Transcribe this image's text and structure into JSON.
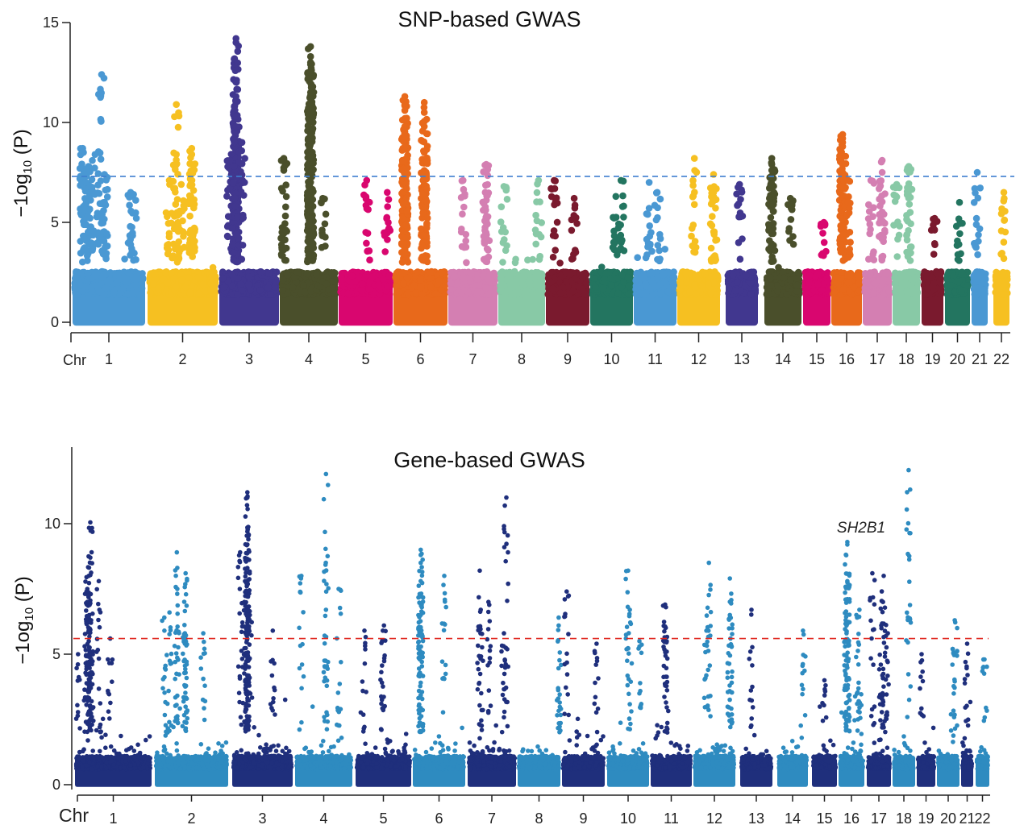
{
  "chart_data": [
    {
      "type": "scatter",
      "subtype": "manhattan",
      "title": "SNP-based GWAS",
      "ylabel": "−1og10 (P)",
      "ylabel_main": "−1og",
      "ylabel_sub": "10",
      "ylabel_tail": " (P)",
      "xlabel": "Chr",
      "ylim": [
        0,
        15
      ],
      "yticks": [
        "0",
        "5",
        "10",
        "15"
      ],
      "threshold": 7.3,
      "threshold_color": "#3f7fd0",
      "grid": false,
      "chromosomes": [
        {
          "label": "1",
          "color": "#4a98d3",
          "peaks": [
            [
              0.14,
              8.7
            ],
            [
              0.15,
              8.5
            ],
            [
              0.22,
              7.8
            ],
            [
              0.2,
              7.6
            ],
            [
              0.18,
              7.0
            ],
            [
              0.25,
              6.5
            ],
            [
              0.4,
              12.4
            ],
            [
              0.31,
              8.4
            ],
            [
              0.44,
              7.4
            ],
            [
              0.44,
              6.0
            ],
            [
              0.84,
              6.4
            ],
            [
              0.8,
              6.5
            ]
          ]
        },
        {
          "label": "2",
          "color": "#f6c021",
          "peaks": [
            [
              0.41,
              10.9
            ],
            [
              0.41,
              8.4
            ],
            [
              0.63,
              8.7
            ],
            [
              0.63,
              8.4
            ],
            [
              0.63,
              7.6
            ],
            [
              0.31,
              7.1
            ],
            [
              0.48,
              6.9
            ]
          ]
        },
        {
          "label": "3",
          "color": "#41378f",
          "peaks": [
            [
              0.28,
              14.2
            ],
            [
              0.28,
              14.0
            ],
            [
              0.28,
              11.3
            ],
            [
              0.28,
              11.0
            ],
            [
              0.25,
              10.8
            ],
            [
              0.28,
              10.3
            ],
            [
              0.28,
              9.8
            ],
            [
              0.25,
              9.0
            ],
            [
              0.38,
              9.0
            ],
            [
              0.18,
              8.1
            ],
            [
              0.25,
              7.8
            ]
          ]
        },
        {
          "label": "4",
          "color": "#4a4f2b",
          "peaks": [
            [
              0.53,
              13.8
            ],
            [
              0.53,
              13.3
            ],
            [
              0.53,
              13.0
            ],
            [
              0.53,
              12.9
            ],
            [
              0.53,
              11.5
            ],
            [
              0.53,
              11.0
            ],
            [
              0.53,
              10.5
            ],
            [
              0.53,
              9.4
            ],
            [
              0.07,
              8.2
            ],
            [
              0.07,
              7.6
            ],
            [
              0.53,
              7.0
            ],
            [
              0.74,
              6.2
            ]
          ]
        },
        {
          "label": "5",
          "color": "#d9066f",
          "peaks": [
            [
              0.52,
              7.1
            ],
            [
              0.9,
              6.5
            ]
          ]
        },
        {
          "label": "6",
          "color": "#e8691b",
          "peaks": [
            [
              0.21,
              11.3
            ],
            [
              0.21,
              11.0
            ],
            [
              0.21,
              10.6
            ],
            [
              0.21,
              10.2
            ],
            [
              0.21,
              9.8
            ],
            [
              0.21,
              9.3
            ],
            [
              0.21,
              8.8
            ],
            [
              0.57,
              11.0
            ],
            [
              0.57,
              10.5
            ],
            [
              0.57,
              9.8
            ],
            [
              0.57,
              8.5
            ],
            [
              0.57,
              7.6
            ]
          ]
        },
        {
          "label": "7",
          "color": "#d47fb2",
          "peaks": [
            [
              0.77,
              7.9
            ],
            [
              0.77,
              7.5
            ],
            [
              0.3,
              7.1
            ],
            [
              0.75,
              6.5
            ]
          ]
        },
        {
          "label": "8",
          "color": "#88c9a6",
          "peaks": [
            [
              0.86,
              7.1
            ],
            [
              0.12,
              6.8
            ]
          ]
        },
        {
          "label": "9",
          "color": "#7a1a2e",
          "peaks": [
            [
              0.19,
              7.1
            ],
            [
              0.65,
              6.2
            ]
          ]
        },
        {
          "label": "10",
          "color": "#237560",
          "peaks": [
            [
              0.72,
              7.1
            ],
            [
              0.6,
              6.3
            ]
          ]
        },
        {
          "label": "11",
          "color": "#4a98d3",
          "peaks": [
            [
              0.36,
              7.0
            ],
            [
              0.55,
              6.5
            ]
          ]
        },
        {
          "label": "12",
          "color": "#f6c021",
          "peaks": [
            [
              0.4,
              8.2
            ],
            [
              0.85,
              7.4
            ],
            [
              0.85,
              6.5
            ]
          ]
        },
        {
          "label": "13",
          "color": "#41378f",
          "peaks": [
            [
              0.43,
              6.9
            ]
          ]
        },
        {
          "label": "14",
          "color": "#4a4f2b",
          "peaks": [
            [
              0.2,
              8.2
            ],
            [
              0.2,
              7.9
            ],
            [
              0.2,
              7.6
            ],
            [
              0.2,
              6.9
            ],
            [
              0.7,
              6.2
            ]
          ]
        },
        {
          "label": "15",
          "color": "#d9066f",
          "peaks": [
            [
              0.76,
              5.0
            ]
          ]
        },
        {
          "label": "16",
          "color": "#e8691b",
          "peaks": [
            [
              0.37,
              9.4
            ],
            [
              0.37,
              9.2
            ],
            [
              0.37,
              9.0
            ],
            [
              0.37,
              8.8
            ],
            [
              0.37,
              7.9
            ],
            [
              0.55,
              7.1
            ]
          ]
        },
        {
          "label": "17",
          "color": "#d47fb2",
          "peaks": [
            [
              0.67,
              8.1
            ],
            [
              0.67,
              7.5
            ],
            [
              0.28,
              7.1
            ]
          ]
        },
        {
          "label": "18",
          "color": "#88c9a6",
          "peaks": [
            [
              0.59,
              7.8
            ],
            [
              0.59,
              7.5
            ],
            [
              0.15,
              6.9
            ]
          ]
        },
        {
          "label": "19",
          "color": "#7a1a2e",
          "peaks": [
            [
              0.6,
              5.2
            ]
          ]
        },
        {
          "label": "20",
          "color": "#237560",
          "peaks": [
            [
              0.58,
              6.0
            ]
          ]
        },
        {
          "label": "21",
          "color": "#4a98d3",
          "peaks": [
            [
              0.35,
              7.5
            ]
          ]
        },
        {
          "label": "22",
          "color": "#f6c021",
          "peaks": [
            [
              0.65,
              6.5
            ]
          ]
        }
      ]
    },
    {
      "type": "scatter",
      "subtype": "manhattan",
      "title": "Gene-based GWAS",
      "ylabel": "−1og10 (P)",
      "ylabel_main": "−1og",
      "ylabel_sub": "10",
      "ylabel_tail": " (P)",
      "xlabel": "Chr",
      "ylim": [
        0,
        13
      ],
      "yticks": [
        "0",
        "5",
        "10"
      ],
      "threshold": 5.6,
      "threshold_color": "#e0261f",
      "grid": false,
      "annotation": {
        "text": "SH2B1",
        "chromosome": "16",
        "value": 9.3
      },
      "colors": [
        "#1f2f7c",
        "#2e8bc0"
      ],
      "chromosomes": [
        {
          "label": "1",
          "peaks": [
            [
              0.2,
              10.05
            ],
            [
              0.2,
              8.7
            ],
            [
              0.18,
              8.0
            ],
            [
              0.15,
              7.95
            ],
            [
              0.31,
              7.8
            ],
            [
              0.15,
              7.4
            ],
            [
              0.16,
              7.0
            ],
            [
              0.2,
              6.95
            ],
            [
              0.21,
              6.3
            ],
            [
              0.04,
              5.0
            ],
            [
              0.46,
              5.6
            ],
            [
              0.18,
              5.5
            ]
          ]
        },
        {
          "label": "2",
          "peaks": [
            [
              0.3,
              8.9
            ],
            [
              0.42,
              8.1
            ],
            [
              0.13,
              6.4
            ],
            [
              0.2,
              6.6
            ],
            [
              0.31,
              6.55
            ],
            [
              0.41,
              6.65
            ],
            [
              0.41,
              5.8
            ],
            [
              0.66,
              5.8
            ],
            [
              0.41,
              5.4
            ]
          ]
        },
        {
          "label": "3",
          "peaks": [
            [
              0.13,
              8.9
            ],
            [
              0.25,
              11.2
            ],
            [
              0.25,
              11.0
            ],
            [
              0.25,
              9.85
            ],
            [
              0.25,
              9.7
            ],
            [
              0.25,
              9.2
            ],
            [
              0.25,
              8.3
            ],
            [
              0.2,
              7.0
            ],
            [
              0.29,
              6.5
            ],
            [
              0.25,
              6.2
            ],
            [
              0.67,
              5.9
            ]
          ]
        },
        {
          "label": "4",
          "peaks": [
            [
              0.11,
              8.0
            ],
            [
              0.54,
              11.9
            ],
            [
              0.54,
              6.7
            ],
            [
              0.76,
              7.5
            ]
          ]
        },
        {
          "label": "5",
          "peaks": [
            [
              0.51,
              6.1
            ],
            [
              0.16,
              5.9
            ],
            [
              0.49,
              5.9
            ]
          ]
        },
        {
          "label": "6",
          "peaks": [
            [
              0.15,
              9.0
            ],
            [
              0.15,
              8.8
            ],
            [
              0.15,
              8.5
            ],
            [
              0.15,
              7.8
            ],
            [
              0.15,
              7.2
            ],
            [
              0.15,
              6.5
            ],
            [
              0.6,
              8.0
            ]
          ]
        },
        {
          "label": "7",
          "peaks": [
            [
              0.25,
              8.2
            ],
            [
              0.43,
              7.0
            ],
            [
              0.27,
              6.7
            ],
            [
              0.8,
              11.0
            ],
            [
              0.75,
              5.8
            ]
          ]
        },
        {
          "label": "8",
          "peaks": [
            [
              0.96,
              6.4
            ],
            [
              0.96,
              6.1
            ]
          ]
        },
        {
          "label": "9",
          "peaks": [
            [
              0.11,
              7.4
            ],
            [
              0.81,
              5.4
            ]
          ]
        },
        {
          "label": "10",
          "peaks": [
            [
              0.5,
              8.2
            ],
            [
              0.54,
              6.7
            ],
            [
              0.77,
              5.5
            ]
          ]
        },
        {
          "label": "11",
          "peaks": [
            [
              0.35,
              6.9
            ],
            [
              0.37,
              6.8
            ],
            [
              0.37,
              5.5
            ]
          ]
        },
        {
          "label": "12",
          "peaks": [
            [
              0.37,
              8.5
            ],
            [
              0.31,
              5.9
            ],
            [
              0.87,
              7.9
            ],
            [
              0.87,
              6.5
            ],
            [
              0.87,
              6.4
            ]
          ]
        },
        {
          "label": "13",
          "peaks": [
            [
              0.35,
              6.7
            ]
          ]
        },
        {
          "label": "14",
          "peaks": [
            [
              0.84,
              5.9
            ]
          ]
        },
        {
          "label": "15",
          "peaks": [
            [
              0.5,
              4.0
            ]
          ]
        },
        {
          "label": "16",
          "peaks": [
            [
              0.34,
              9.3
            ],
            [
              0.34,
              9.2
            ],
            [
              0.34,
              7.8
            ],
            [
              0.34,
              7.6
            ],
            [
              0.81,
              6.7
            ],
            [
              0.69,
              6.5
            ],
            [
              0.31,
              6.1
            ],
            [
              0.31,
              5.8
            ]
          ]
        },
        {
          "label": "17",
          "peaks": [
            [
              0.23,
              8.1
            ],
            [
              0.7,
              8.0
            ],
            [
              0.67,
              7.0
            ],
            [
              0.87,
              5.8
            ],
            [
              0.6,
              6.1
            ]
          ]
        },
        {
          "label": "18",
          "peaks": [
            [
              0.71,
              12.05
            ]
          ]
        },
        {
          "label": "19",
          "peaks": [
            [
              0.26,
              5.0
            ]
          ]
        },
        {
          "label": "20",
          "peaks": [
            [
              0.79,
              6.3
            ],
            [
              0.7,
              5.2
            ]
          ]
        },
        {
          "label": "21",
          "peaks": [
            [
              0.5,
              5.4
            ]
          ]
        },
        {
          "label": "22",
          "peaks": [
            [
              0.65,
              4.8
            ]
          ]
        }
      ]
    }
  ]
}
